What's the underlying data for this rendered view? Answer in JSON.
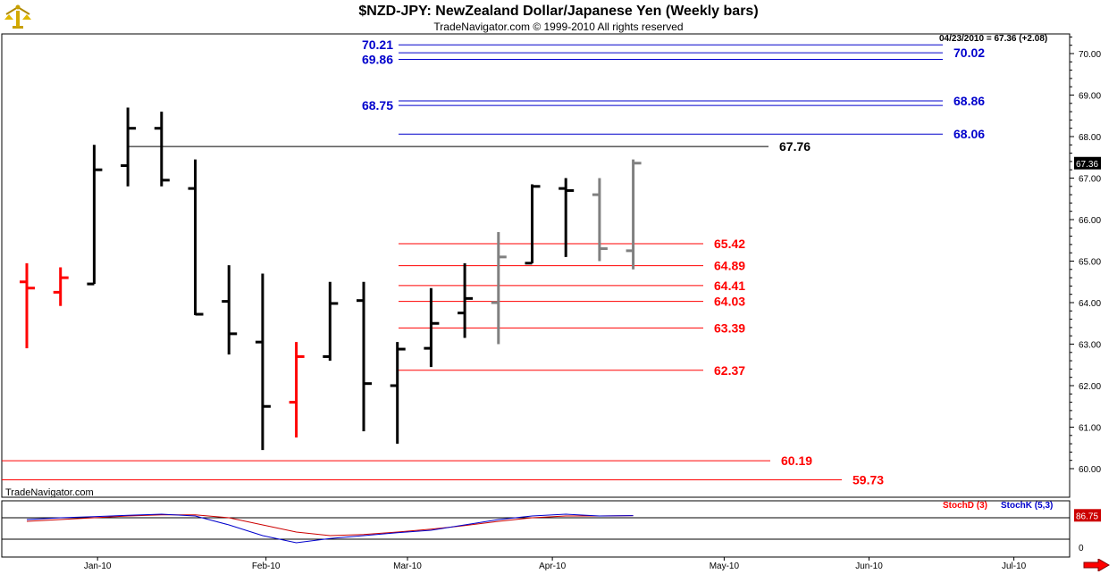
{
  "header": {
    "title": "$NZD-JPY:  NewZealand Dollar/Japanese Yen  (Weekly bars)",
    "subtitle": "TradeNavigator.com © 1999-2010 All rights reserved",
    "date_info": "04/23/2010 = 67.36 (+2.08)"
  },
  "watermark": "TradeNavigator.com",
  "stoch_legend": {
    "d_label": "StochD (3)",
    "k_label": "StochK (5,3)"
  },
  "colors": {
    "up": "#000000",
    "down": "#ff0000",
    "projected": "#808080",
    "blue_level": "#0000cc",
    "red_level": "#ff0000",
    "stoch_d": "#cc0000",
    "stoch_k": "#0000cc"
  },
  "chart_data": {
    "type": "ohlc",
    "title": "$NZD-JPY:  NewZealand Dollar/Japanese Yen  (Weekly bars)",
    "ylim": [
      59.5,
      70.4
    ],
    "y_ticks": [
      "60.00",
      "61.00",
      "62.00",
      "63.00",
      "64.00",
      "65.00",
      "66.00",
      "67.00",
      "68.00",
      "69.00",
      "70.00"
    ],
    "x_ticks": [
      "Jan-10",
      "Feb-10",
      "Mar-10",
      "Apr-10",
      "May-10",
      "Jun-10",
      "Jul-10"
    ],
    "x_tick_idx": [
      2.1,
      7.1,
      11.3,
      15.6,
      20.7,
      25.0,
      29.3
    ],
    "last_price": "67.36",
    "bars": [
      {
        "i": 0,
        "o": 64.5,
        "h": 64.95,
        "l": 62.9,
        "c": 64.35,
        "color": "down"
      },
      {
        "i": 1,
        "o": 64.25,
        "h": 64.85,
        "l": 63.92,
        "c": 64.6,
        "color": "down"
      },
      {
        "i": 2,
        "o": 64.45,
        "h": 67.8,
        "l": 64.45,
        "c": 67.2,
        "color": "up"
      },
      {
        "i": 3,
        "o": 67.3,
        "h": 68.7,
        "l": 66.8,
        "c": 68.2,
        "color": "up"
      },
      {
        "i": 4,
        "o": 68.2,
        "h": 68.6,
        "l": 66.8,
        "c": 66.95,
        "color": "up"
      },
      {
        "i": 5,
        "o": 66.75,
        "h": 67.45,
        "l": 63.7,
        "c": 63.72,
        "color": "up"
      },
      {
        "i": 6,
        "o": 64.03,
        "h": 64.9,
        "l": 62.75,
        "c": 63.25,
        "color": "up"
      },
      {
        "i": 7,
        "o": 63.05,
        "h": 64.7,
        "l": 60.45,
        "c": 61.5,
        "color": "up"
      },
      {
        "i": 8,
        "o": 61.6,
        "h": 63.05,
        "l": 60.75,
        "c": 62.7,
        "color": "down"
      },
      {
        "i": 9,
        "o": 62.7,
        "h": 64.5,
        "l": 62.6,
        "c": 63.98,
        "color": "up"
      },
      {
        "i": 10,
        "o": 64.05,
        "h": 64.5,
        "l": 60.9,
        "c": 62.05,
        "color": "up"
      },
      {
        "i": 11,
        "o": 62.0,
        "h": 63.05,
        "l": 60.6,
        "c": 62.88,
        "color": "up"
      },
      {
        "i": 12,
        "o": 62.9,
        "h": 64.35,
        "l": 62.45,
        "c": 63.5,
        "color": "up"
      },
      {
        "i": 13,
        "o": 63.75,
        "h": 64.95,
        "l": 63.15,
        "c": 64.1,
        "color": "up"
      },
      {
        "i": 14,
        "o": 64.0,
        "h": 65.7,
        "l": 63.0,
        "c": 65.1,
        "color": "projected"
      },
      {
        "i": 15,
        "o": 64.95,
        "h": 66.85,
        "l": 64.95,
        "c": 66.8,
        "color": "up"
      },
      {
        "i": 16,
        "o": 66.75,
        "h": 67.0,
        "l": 65.1,
        "c": 66.7,
        "color": "up"
      },
      {
        "i": 17,
        "o": 66.6,
        "h": 67.0,
        "l": 65.0,
        "c": 65.3,
        "color": "projected"
      },
      {
        "i": 18,
        "o": 65.25,
        "h": 67.45,
        "l": 64.8,
        "c": 67.36,
        "color": "projected"
      }
    ],
    "levels": [
      {
        "label": "70.21",
        "value": 70.21,
        "color": "blue",
        "label_side": "left"
      },
      {
        "label": "69.86",
        "value": 69.86,
        "color": "blue",
        "label_side": "left"
      },
      {
        "label": "70.02",
        "value": 70.02,
        "color": "blue",
        "label_side": "right"
      },
      {
        "label": "68.75",
        "value": 68.75,
        "color": "blue",
        "label_side": "left"
      },
      {
        "label": "68.86",
        "value": 68.86,
        "color": "blue",
        "label_side": "right"
      },
      {
        "label": "68.06",
        "value": 68.06,
        "color": "blue",
        "label_side": "right"
      },
      {
        "label": "67.76",
        "value": 67.76,
        "color": "black",
        "label_side": "right"
      },
      {
        "label": "65.42",
        "value": 65.42,
        "color": "red",
        "label_side": "right"
      },
      {
        "label": "64.89",
        "value": 64.89,
        "color": "red",
        "label_side": "right"
      },
      {
        "label": "64.41",
        "value": 64.41,
        "color": "red",
        "label_side": "right"
      },
      {
        "label": "64.03",
        "value": 64.03,
        "color": "red",
        "label_side": "right"
      },
      {
        "label": "63.39",
        "value": 63.39,
        "color": "red",
        "label_side": "right"
      },
      {
        "label": "62.37",
        "value": 62.37,
        "color": "red",
        "label_side": "right"
      },
      {
        "label": "60.19",
        "value": 60.19,
        "color": "red",
        "label_side": "right"
      },
      {
        "label": "59.73",
        "value": 59.73,
        "color": "red",
        "label_side": "right"
      }
    ],
    "stoch": {
      "value_label": "86.75",
      "zero_label": "0",
      "d": [
        70,
        75,
        80,
        85,
        88,
        88,
        80,
        60,
        40,
        30,
        33,
        40,
        48,
        58,
        70,
        80,
        85,
        85,
        86
      ],
      "k": [
        75,
        80,
        83,
        87,
        90,
        85,
        60,
        30,
        10,
        22,
        30,
        38,
        45,
        60,
        75,
        85,
        90,
        85,
        86
      ]
    }
  }
}
